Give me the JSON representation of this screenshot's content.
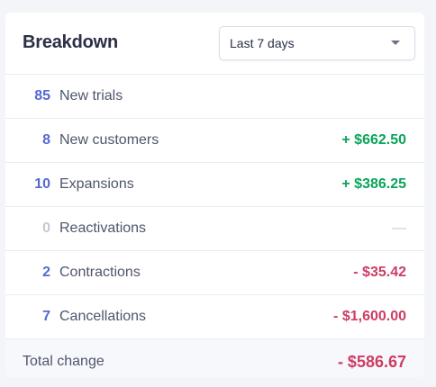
{
  "title": "Breakdown",
  "period_select": {
    "value": "Last 7 days"
  },
  "rows": [
    {
      "count": "85",
      "label": "New trials",
      "amount": ""
    },
    {
      "count": "8",
      "label": "New customers",
      "amount": "+ $662.50"
    },
    {
      "count": "10",
      "label": "Expansions",
      "amount": "+ $386.25"
    },
    {
      "count": "0",
      "label": "Reactivations",
      "amount": "—"
    },
    {
      "count": "2",
      "label": "Contractions",
      "amount": "- $35.42"
    },
    {
      "count": "7",
      "label": "Cancellations",
      "amount": "- $1,600.00"
    }
  ],
  "total": {
    "label": "Total change",
    "amount": "- $586.67"
  },
  "colors": {
    "count": "#5469d4",
    "positive": "#09a55a",
    "negative": "#cd3d64",
    "muted": "#c1c9d2"
  }
}
